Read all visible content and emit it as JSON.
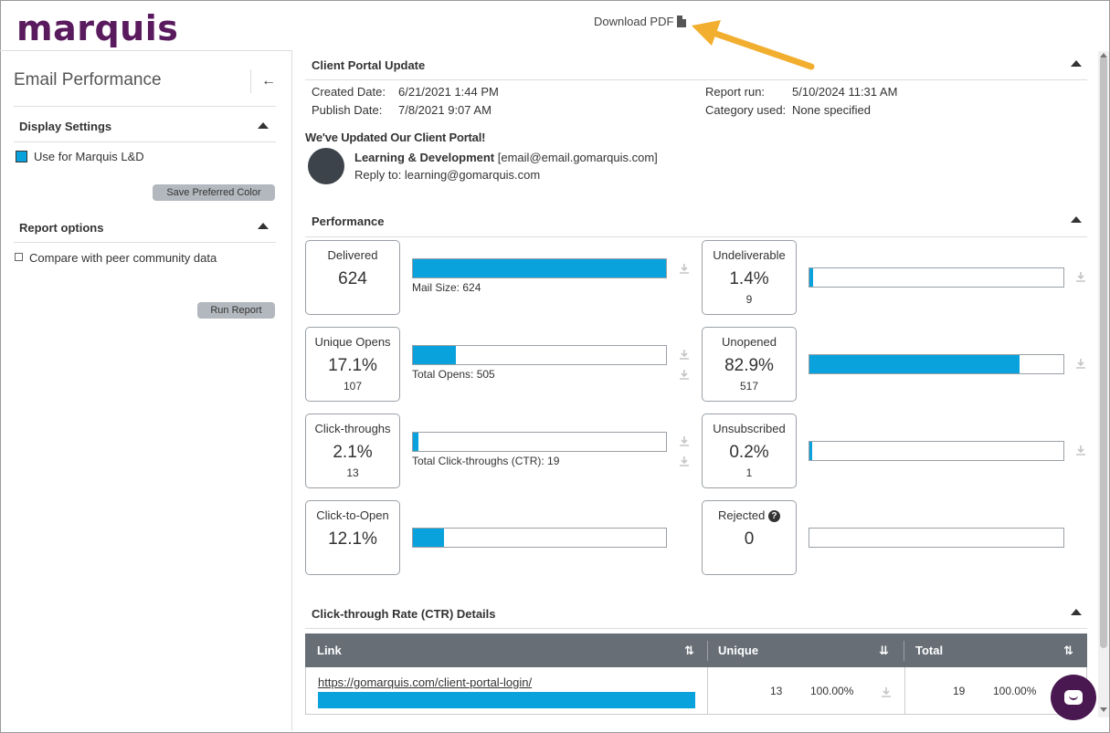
{
  "app": {
    "logo": "marquis",
    "download_pdf": "Download PDF",
    "pdf_icon": "pdf-file-icon"
  },
  "colors": {
    "brand": "#5a1a5e",
    "bar_blue": "#0aa2dc",
    "table_header": "#676e76",
    "chat": "#4a1850"
  },
  "sidebar": {
    "title": "Email Performance",
    "back_icon": "arrow-left-icon",
    "display_settings": {
      "heading": "Display Settings",
      "color_label": "Use for Marquis L&D",
      "save_button": "Save Preferred Color"
    },
    "report_options": {
      "heading": "Report options",
      "compare_label": "Compare with peer community data",
      "compare_checked": false,
      "run_button": "Run Report"
    }
  },
  "portal": {
    "heading": "Client Portal Update",
    "created_label": "Created Date:",
    "created_value": "6/21/2021 1:44 PM",
    "publish_label": "Publish Date:",
    "publish_value": "7/8/2021 9:07 AM",
    "report_run_label": "Report run:",
    "report_run_value": "5/10/2024 11:31 AM",
    "category_label": "Category used:",
    "category_value": "None specified",
    "subject": "We've Updated Our Client Portal!",
    "sender_name": "Learning & Development",
    "sender_email": "[email@email.gomarquis.com]",
    "reply_to": "Reply to: learning@gomarquis.com"
  },
  "performance": {
    "heading": "Performance",
    "delivered": {
      "label": "Delivered",
      "value": "624",
      "bar_fraction": 1.0,
      "caption": "Mail Size: 624"
    },
    "unique_opens": {
      "label": "Unique Opens",
      "value": "17.1%",
      "sub": "107",
      "bar_fraction": 0.171,
      "caption": "Total Opens: 505"
    },
    "click_throughs": {
      "label": "Click-throughs",
      "value": "2.1%",
      "sub": "13",
      "bar_fraction": 0.021,
      "caption": "Total Click-throughs (CTR): 19"
    },
    "click_to_open": {
      "label": "Click-to-Open",
      "value": "12.1%",
      "bar_fraction": 0.121
    },
    "undeliverable": {
      "label": "Undeliverable",
      "value": "1.4%",
      "sub": "9",
      "bar_fraction": 0.014
    },
    "unopened": {
      "label": "Unopened",
      "value": "82.9%",
      "sub": "517",
      "bar_fraction": 0.829
    },
    "unsubscribed": {
      "label": "Unsubscribed",
      "value": "0.2%",
      "sub": "1",
      "bar_fraction": 0.002
    },
    "rejected": {
      "label": "Rejected",
      "value": "0",
      "bar_fraction": 0.0,
      "help_icon": "question-circle-icon"
    }
  },
  "ctr": {
    "heading": "Click-through Rate (CTR) Details",
    "columns": {
      "link": "Link",
      "unique": "Unique",
      "total": "Total"
    },
    "rows": [
      {
        "link": "https://gomarquis.com/client-portal-login/",
        "unique_count": "13",
        "unique_pct": "100.00%",
        "total_count": "19",
        "total_pct": "100.00%",
        "bar_fraction": 1.0
      }
    ]
  }
}
